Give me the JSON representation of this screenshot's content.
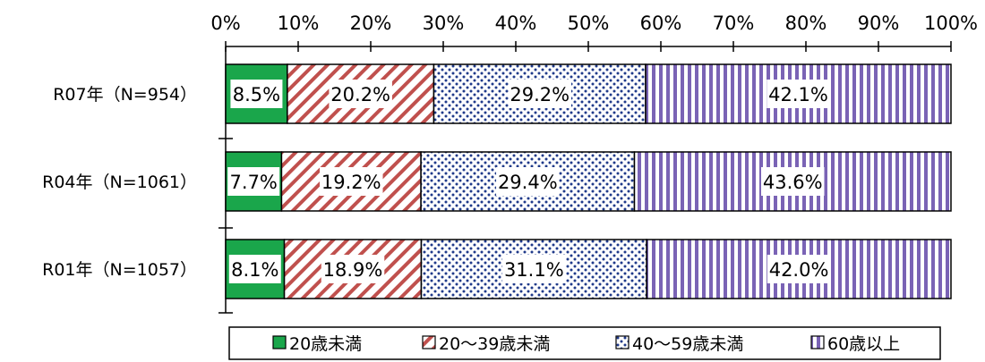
{
  "chart_data": {
    "type": "bar",
    "orientation": "horizontal",
    "stacked": "percent",
    "categories": [
      "R07年（N=954）",
      "R04年（N=1061）",
      "R01年（N=1057）"
    ],
    "series": [
      {
        "name": "20歳未満",
        "values": [
          8.5,
          7.7,
          8.1
        ],
        "labels": [
          "8.5%",
          "7.7%",
          "8.1%"
        ],
        "color": "#1aa64b",
        "pattern": "solid"
      },
      {
        "name": "20～39歳未満",
        "values": [
          20.2,
          19.2,
          18.9
        ],
        "labels": [
          "20.2%",
          "19.2%",
          "18.9%"
        ],
        "color": "#c0504d",
        "pattern": "diagonal-stripes"
      },
      {
        "name": "40～59歳未満",
        "values": [
          29.2,
          29.4,
          31.1
        ],
        "labels": [
          "29.2%",
          "29.4%",
          "31.1%"
        ],
        "color": "#1f3a8a",
        "pattern": "dots"
      },
      {
        "name": "60歳以上",
        "values": [
          42.1,
          43.6,
          42.0
        ],
        "labels": [
          "42.1%",
          "43.6%",
          "42.0%"
        ],
        "color": "#7a63b5",
        "pattern": "vertical-stripes"
      }
    ],
    "xlim": [
      0,
      100
    ],
    "x_ticks": [
      "0%",
      "10%",
      "20%",
      "30%",
      "40%",
      "50%",
      "60%",
      "70%",
      "80%",
      "90%",
      "100%"
    ],
    "axis_position": "top",
    "legend_position": "bottom",
    "grid": false
  }
}
